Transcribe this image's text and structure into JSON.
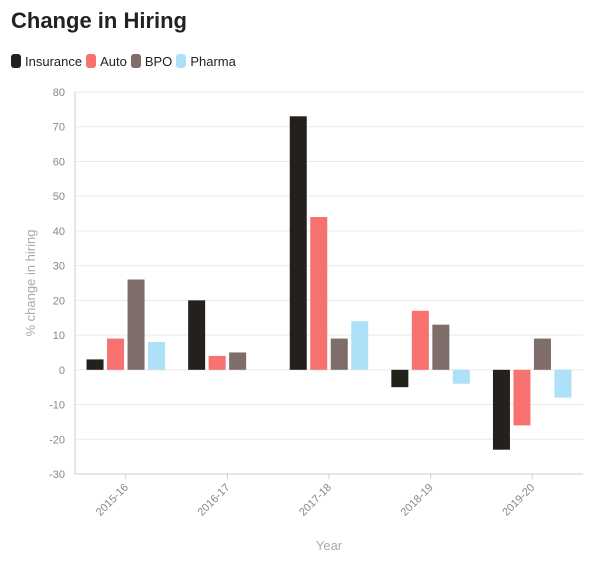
{
  "colors": {
    "Insurance": "#24201c",
    "Auto": "#f87171",
    "BPO": "#7e6d69",
    "Pharma": "#aee0f8"
  },
  "chart_data": {
    "type": "bar",
    "title": "Change in Hiring",
    "xlabel": "Year",
    "ylabel": "% change in hiring",
    "categories": [
      "2015-16",
      "2016-17",
      "2017-18",
      "2018-19",
      "2019-20"
    ],
    "series": [
      {
        "name": "Insurance",
        "values": [
          3,
          20,
          73,
          -5,
          -23
        ]
      },
      {
        "name": "Auto",
        "values": [
          9,
          4,
          44,
          17,
          -16
        ]
      },
      {
        "name": "BPO",
        "values": [
          26,
          5,
          9,
          13,
          9
        ]
      },
      {
        "name": "Pharma",
        "values": [
          8,
          null,
          14,
          -4,
          -8
        ]
      }
    ],
    "ylim": [
      -30,
      80
    ],
    "yticks": [
      80,
      70,
      60,
      50,
      40,
      30,
      20,
      10,
      0,
      -10,
      -20,
      -30
    ],
    "grid": true,
    "legend_position": "top-left"
  }
}
